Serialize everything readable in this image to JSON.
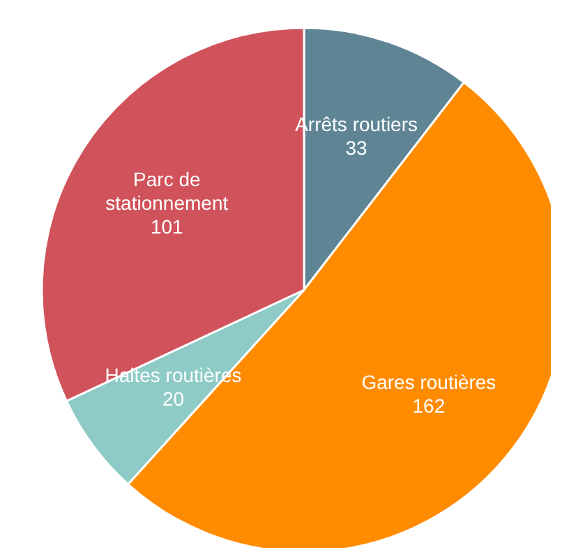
{
  "chart_data": {
    "type": "pie",
    "categories": [
      "Arrêts routiers",
      "Gares routières",
      "Haltes routières",
      "Parc de stationnement"
    ],
    "values": [
      33,
      162,
      20,
      101
    ],
    "colors": [
      "#5f8595",
      "#ff8c00",
      "#8ecac6",
      "#d0525b"
    ],
    "data_labels": true,
    "legend": false
  }
}
